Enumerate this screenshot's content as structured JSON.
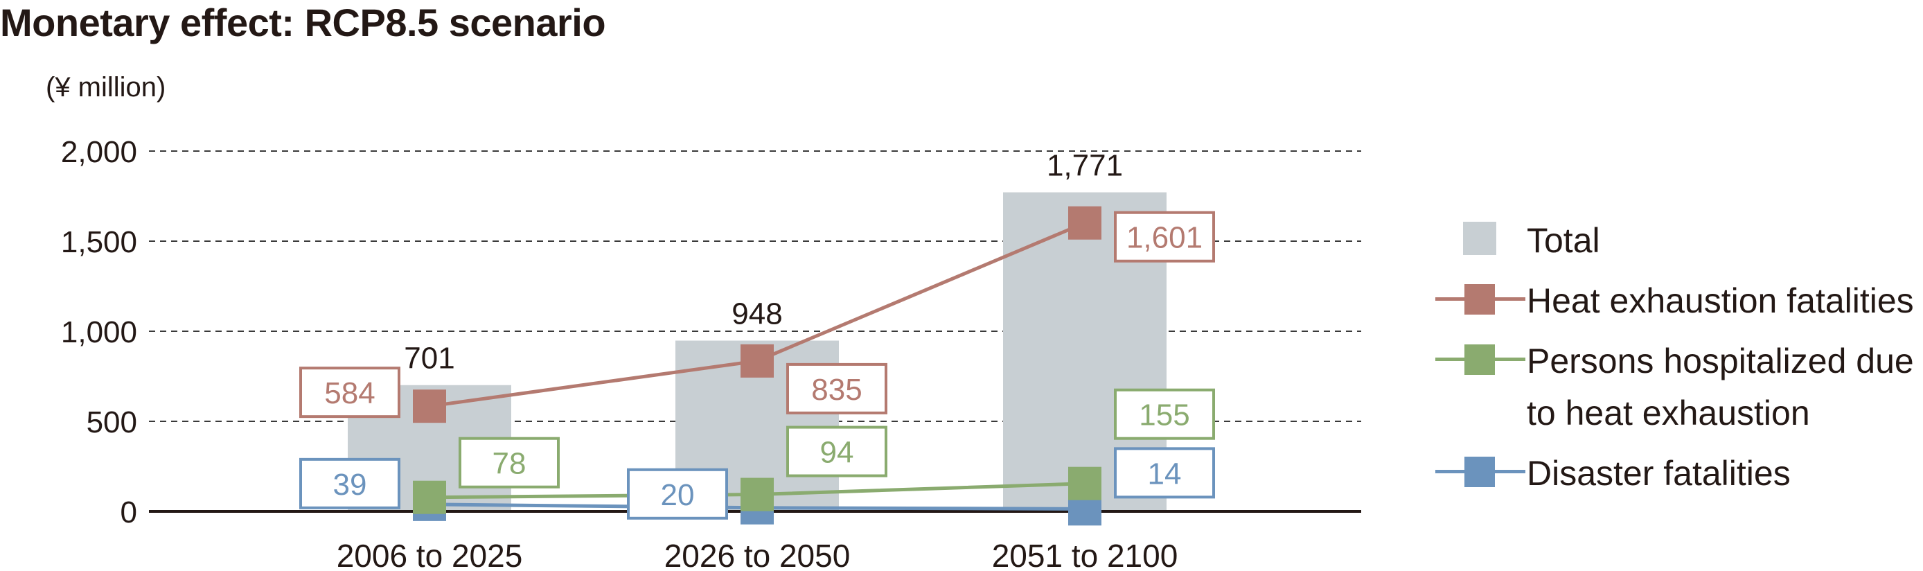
{
  "chart_data": {
    "type": "bar",
    "title": "Monetary effect: RCP8.5 scenario",
    "unit_label": "(¥ million)",
    "categories": [
      "2006 to 2025",
      "2026 to 2050",
      "2051 to 2100"
    ],
    "ylim": [
      0,
      2000
    ],
    "yticks": [
      0,
      500,
      1000,
      1500,
      2000
    ],
    "ytick_labels": [
      "0",
      "500",
      "1,000",
      "1,500",
      "2,000"
    ],
    "grid": true,
    "legend_position": "right",
    "bars": {
      "name": "Total",
      "values": [
        701,
        948,
        1771
      ],
      "labels": [
        "701",
        "948",
        "1,771"
      ],
      "color": "#c8cfd3"
    },
    "series": [
      {
        "name": "Heat exhaustion fatalities",
        "values": [
          584,
          835,
          1601
        ],
        "labels": [
          "584",
          "835",
          "1,601"
        ],
        "color": "#b47a70"
      },
      {
        "name": "Persons hospitalized due to heat exhaustion",
        "values": [
          78,
          94,
          155
        ],
        "labels": [
          "78",
          "94",
          "155"
        ],
        "color": "#8aab6f"
      },
      {
        "name": "Disaster fatalities",
        "values": [
          39,
          20,
          14
        ],
        "labels": [
          "39",
          "20",
          "14"
        ],
        "color": "#6b93bd"
      }
    ]
  }
}
